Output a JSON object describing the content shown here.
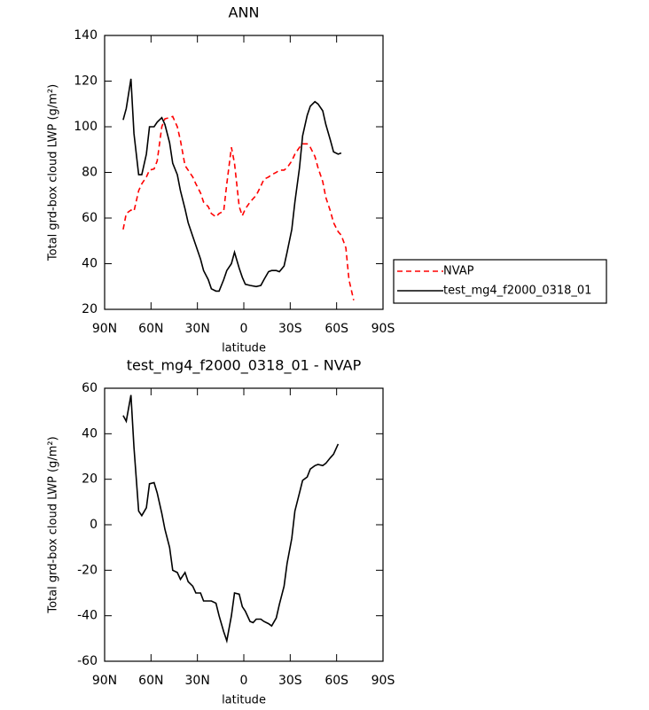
{
  "chart_data": [
    {
      "type": "line",
      "title": "ANN",
      "xlabel": "latitude",
      "ylabel": "Total grd-box cloud LWP (g/m²)",
      "xlim": [
        90,
        -90
      ],
      "ylim": [
        20,
        140
      ],
      "xticks": [
        {
          "value": 90,
          "label": "90N"
        },
        {
          "value": 60,
          "label": "60N"
        },
        {
          "value": 30,
          "label": "30N"
        },
        0,
        {
          "value": -30,
          "label": "30S"
        },
        {
          "value": -60,
          "label": "60S"
        },
        {
          "value": -90,
          "label": "90S"
        }
      ],
      "yticks": [
        20,
        40,
        60,
        80,
        100,
        120,
        140
      ],
      "legend": "right",
      "x": [
        78,
        76,
        73,
        71,
        68,
        66,
        63,
        61,
        58,
        56,
        53,
        51,
        48,
        46,
        43,
        41,
        38,
        36,
        33,
        31,
        28,
        26,
        23,
        21,
        18,
        16,
        13,
        11,
        8,
        6,
        3,
        1,
        -1,
        -4,
        -8,
        -11,
        -13,
        -16,
        -18,
        -21,
        -23,
        -26,
        -28,
        -31,
        -33,
        -36,
        -38,
        -41,
        -43,
        -46,
        -48,
        -51,
        -53,
        -56,
        -58,
        -61,
        -63,
        -66,
        -68,
        -71
      ],
      "series": [
        {
          "name": "NVAP",
          "color": "#ff0000",
          "dash": true,
          "values": [
            55,
            62,
            63.5,
            63,
            72,
            75,
            78,
            81,
            81.5,
            85,
            100,
            103.5,
            104,
            104.5,
            100,
            94,
            83,
            81,
            78,
            75,
            71,
            67,
            65,
            62,
            60.5,
            62,
            63,
            75,
            91,
            84,
            65,
            61,
            64,
            67,
            70,
            74,
            77,
            78,
            79,
            80,
            81,
            81,
            82,
            85,
            88,
            91,
            92.5,
            92.5,
            91,
            87,
            82,
            76,
            69,
            63,
            58,
            54,
            52.5,
            47,
            33,
            24
          ]
        },
        {
          "name": "test_mg4_f2000_0318_01",
          "color": "#000000",
          "dash": false,
          "values": [
            103,
            108,
            121,
            97,
            79,
            79,
            88,
            100,
            100,
            102,
            104,
            101,
            93,
            84,
            79,
            72,
            64,
            58,
            52,
            48,
            42,
            37,
            33,
            29,
            28,
            28,
            33,
            37,
            40,
            45,
            38,
            34,
            31,
            30.5,
            30,
            30.5,
            33,
            36.5,
            37,
            37,
            36.5,
            39,
            45,
            55,
            67,
            82,
            96,
            105,
            109,
            111,
            110,
            107,
            101,
            94,
            89,
            88,
            88.5,
            null,
            null,
            null
          ]
        }
      ]
    },
    {
      "type": "line",
      "title": "test_mg4_f2000_0318_01 - NVAP",
      "xlabel": "latitude",
      "ylabel": "Total grd-box cloud LWP (g/m²)",
      "xlim": [
        90,
        -90
      ],
      "ylim": [
        -60,
        60
      ],
      "xticks": [
        {
          "value": 90,
          "label": "90N"
        },
        {
          "value": 60,
          "label": "60N"
        },
        {
          "value": 30,
          "label": "30N"
        },
        0,
        {
          "value": -30,
          "label": "30S"
        },
        {
          "value": -60,
          "label": "60S"
        },
        {
          "value": -90,
          "label": "90S"
        }
      ],
      "yticks": [
        -60,
        -40,
        -20,
        0,
        20,
        40,
        60
      ],
      "x": [
        78,
        76,
        73,
        71,
        68,
        66,
        63,
        61,
        58,
        56,
        53,
        51,
        48,
        46,
        43,
        41,
        38,
        36,
        33,
        31,
        28,
        26,
        23,
        21,
        18,
        16,
        13,
        11,
        8,
        6,
        3,
        1,
        -1,
        -4,
        -6,
        -8,
        -11,
        -13,
        -16,
        -18,
        -21,
        -23,
        -26,
        -28,
        -31,
        -33,
        -36,
        -38,
        -41,
        -43,
        -46,
        -48,
        -51,
        -53,
        -56,
        -58,
        -61
      ],
      "series": [
        {
          "color": "#000000",
          "dash": false,
          "values": [
            48,
            45.5,
            57,
            34,
            6,
            4,
            7.5,
            18,
            18.5,
            14,
            5,
            -2,
            -10,
            -20,
            -21,
            -24,
            -21,
            -25,
            -27,
            -30,
            -30,
            -33.5,
            -33.5,
            -33.5,
            -34.5,
            -40,
            -47,
            -51,
            -40,
            -30,
            -30.5,
            -36,
            -38,
            -42.5,
            -43,
            -41.5,
            -41.5,
            -42.5,
            -43.5,
            -44.5,
            -41,
            -35,
            -27,
            -17,
            -6,
            6,
            14,
            19.5,
            21,
            24.5,
            26,
            26.5,
            26,
            27,
            29.5,
            31,
            35.5
          ]
        }
      ]
    }
  ]
}
